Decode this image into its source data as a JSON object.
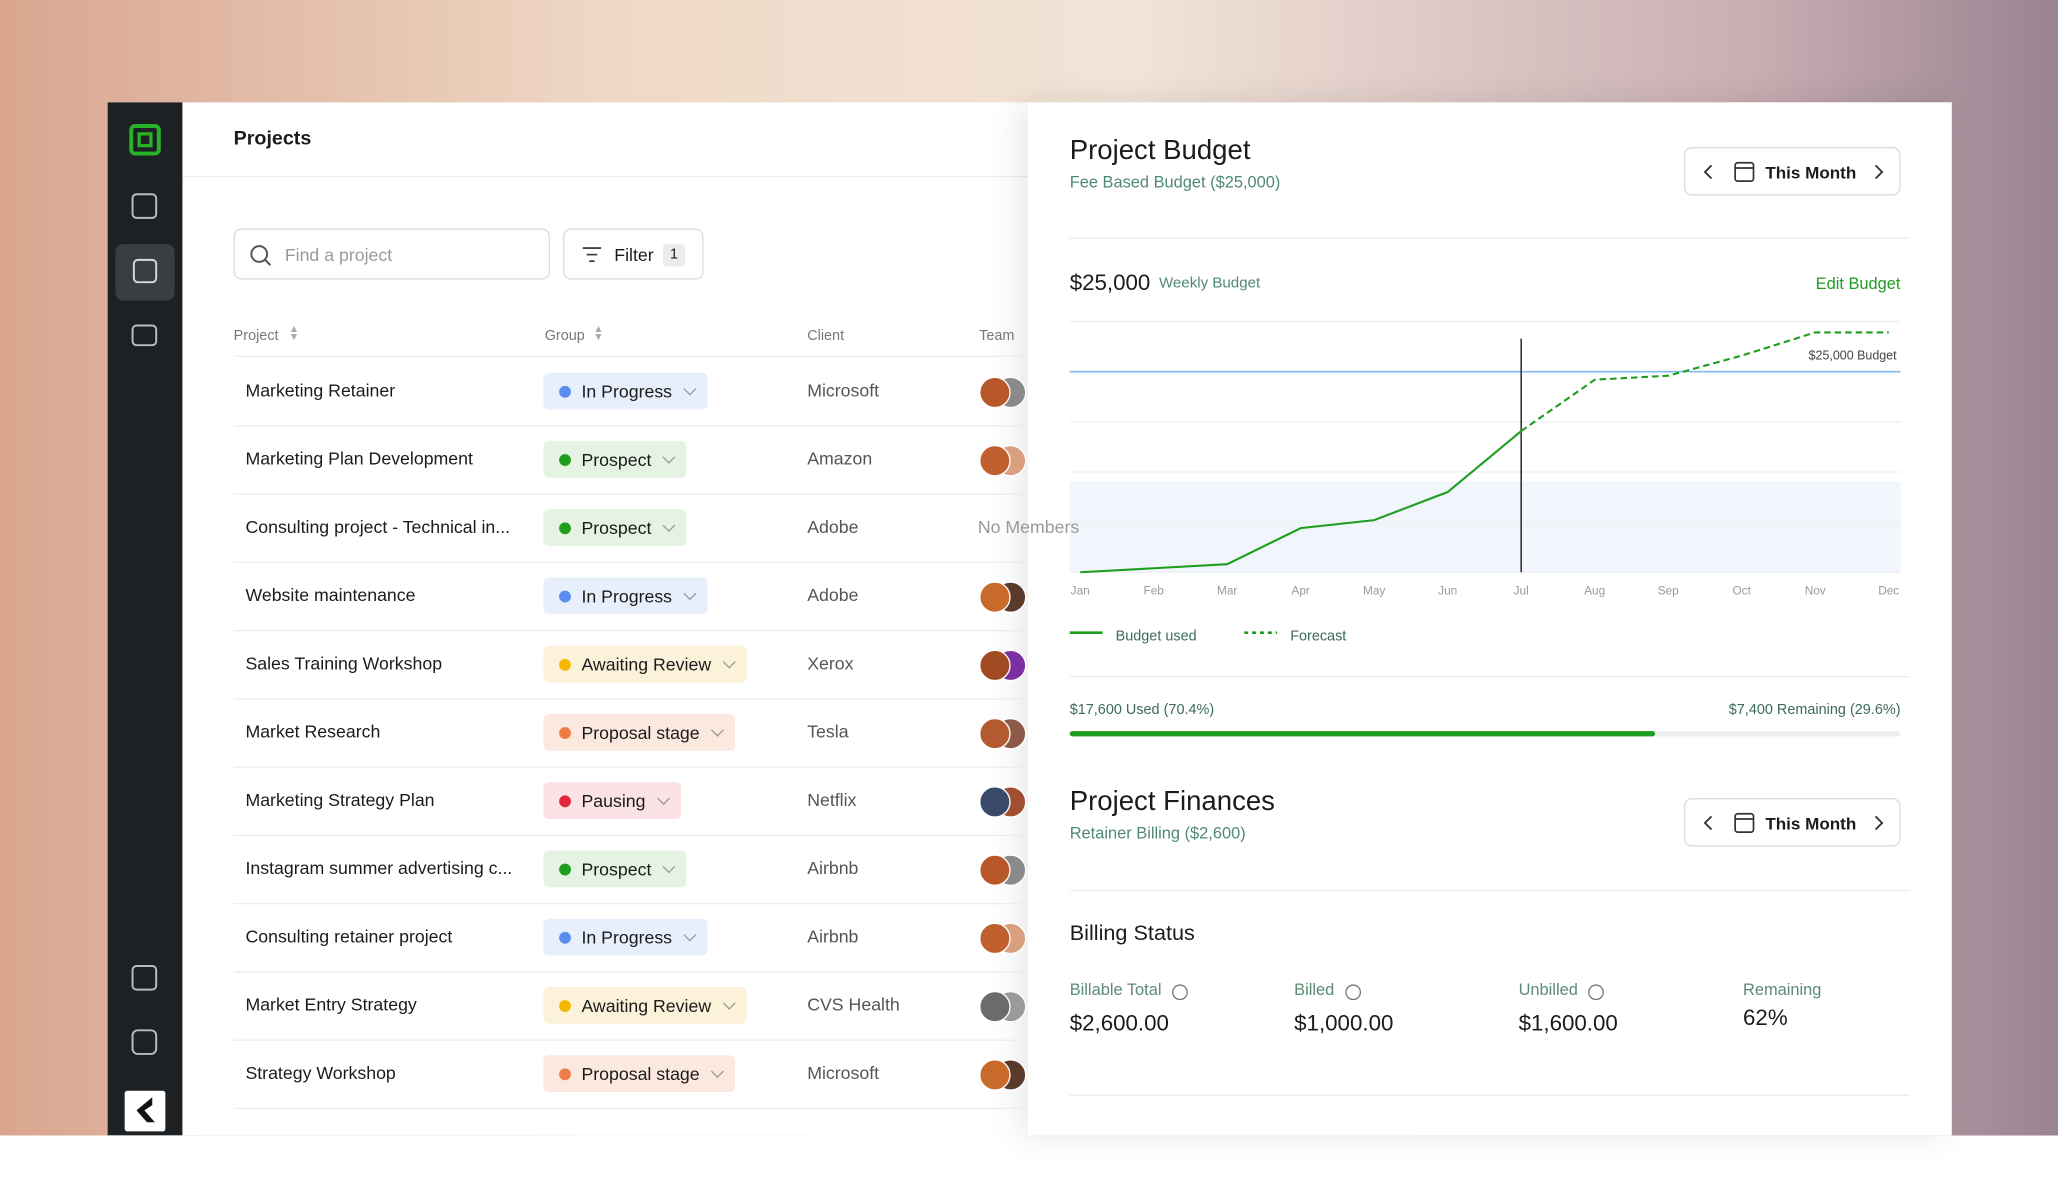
{
  "projects": {
    "title": "Projects",
    "search_placeholder": "Find a project",
    "filter": {
      "label": "Filter",
      "count": 1
    },
    "columns": [
      "Project",
      "Group",
      "Client",
      "Team"
    ],
    "rows": [
      {
        "project": "Marketing Retainer",
        "group": "In Progress",
        "client": "Microsoft"
      },
      {
        "project": "Marketing Plan Development",
        "group": "Prospect",
        "client": "Amazon"
      },
      {
        "project": "Consulting project - Technical in...",
        "group": "Prospect",
        "client": "Adobe",
        "team": "No Members"
      },
      {
        "project": "Website maintenance",
        "group": "In Progress",
        "client": "Adobe"
      },
      {
        "project": "Sales Training Workshop",
        "group": "Awaiting Review",
        "client": "Xerox"
      },
      {
        "project": "Market Research",
        "group": "Proposal stage",
        "client": "Tesla"
      },
      {
        "project": "Marketing Strategy Plan",
        "group": "Pausing",
        "client": "Netflix"
      },
      {
        "project": "Instagram summer advertising c...",
        "group": "Prospect",
        "client": "Airbnb"
      },
      {
        "project": "Consulting retainer project",
        "group": "In Progress",
        "client": "Airbnb"
      },
      {
        "project": "Market Entry Strategy",
        "group": "Awaiting Review",
        "client": "CVS Health"
      },
      {
        "project": "Strategy Workshop",
        "group": "Proposal stage",
        "client": "Microsoft"
      }
    ],
    "group_colors": {
      "In Progress": {
        "dot": "#5b8def",
        "bg": "#e7effc"
      },
      "Prospect": {
        "dot": "#1f9d1f",
        "bg": "#e5f3e3"
      },
      "Awaiting Review": {
        "dot": "#f5b800",
        "bg": "#fcf2da"
      },
      "Proposal stage": {
        "dot": "#ef7b45",
        "bg": "#fbe8de"
      },
      "Pausing": {
        "dot": "#e0283a",
        "bg": "#fbe2e5"
      }
    }
  },
  "budget": {
    "title": "Project Budget",
    "subtitle": "Fee Based Budget ($25,000)",
    "period": "This Month",
    "amount": "$25,000",
    "amount_label": "Weekly Budget",
    "edit": "Edit Budget",
    "used_label": "$17,600 Used (70.4%)",
    "remaining_label": "$7,400 Remaining (29.6%)",
    "used_percent": 70.4
  },
  "chart_data": {
    "type": "line",
    "categories": [
      "Jan",
      "Feb",
      "Mar",
      "Apr",
      "May",
      "Jun",
      "Jul",
      "Aug",
      "Sep",
      "Oct",
      "Nov",
      "Dec"
    ],
    "series": [
      {
        "name": "Budget used",
        "color": "#1f9d1f",
        "dashed": false,
        "values": [
          0,
          500,
          1000,
          5500,
          6500,
          10000,
          17600,
          null,
          null,
          null,
          null,
          null
        ]
      },
      {
        "name": "Forecast",
        "color": "#1f9d1f",
        "dashed": true,
        "values": [
          null,
          null,
          null,
          null,
          null,
          null,
          17600,
          24000,
          24500,
          27000,
          29900,
          29900
        ]
      }
    ],
    "ylim": [
      0,
      31250
    ],
    "yticks": [
      0,
      6250,
      12500,
      18750,
      25000,
      31250
    ],
    "grid": true,
    "reference": {
      "value": 25000,
      "label": "$25,000 Budget",
      "color": "#7fbaf0"
    }
  },
  "finances": {
    "title": "Project Finances",
    "subtitle": "Retainer Billing ($2,600)",
    "period": "This Month",
    "billing_title": "Billing Status",
    "items": [
      {
        "label": "Billable Total",
        "value": "$2,600.00",
        "info": true
      },
      {
        "label": "Billed",
        "value": "$1,000.00",
        "info": true
      },
      {
        "label": "Unbilled",
        "value": "$1,600.00",
        "info": true
      },
      {
        "label": "Remaining",
        "value": "62%",
        "info": false
      }
    ]
  }
}
